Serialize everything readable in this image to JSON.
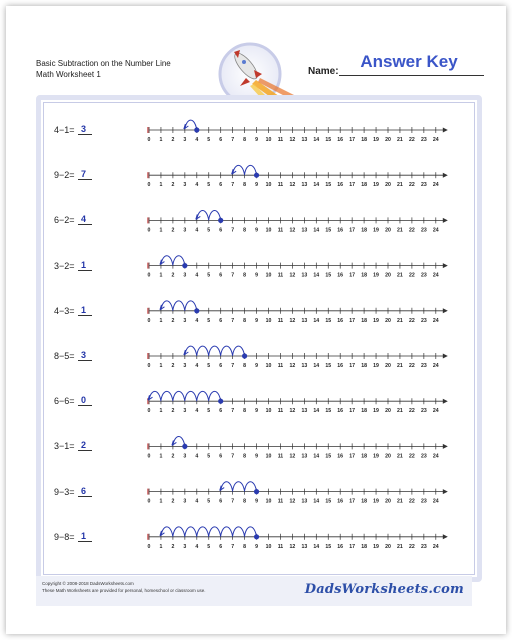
{
  "header": {
    "title_line1": "Basic Subtraction on the Number Line",
    "title_line2": "Math Worksheet 1",
    "name_label": "Name:",
    "answer_key": "Answer Key"
  },
  "problems": [
    {
      "expr": "4−1=",
      "answer": "3",
      "start": 4,
      "jumps": 1
    },
    {
      "expr": "9−2=",
      "answer": "7",
      "start": 9,
      "jumps": 2
    },
    {
      "expr": "6−2=",
      "answer": "4",
      "start": 6,
      "jumps": 2
    },
    {
      "expr": "3−2=",
      "answer": "1",
      "start": 3,
      "jumps": 2
    },
    {
      "expr": "4−3=",
      "answer": "1",
      "start": 4,
      "jumps": 3
    },
    {
      "expr": "8−5=",
      "answer": "3",
      "start": 8,
      "jumps": 5
    },
    {
      "expr": "6−6=",
      "answer": "0",
      "start": 6,
      "jumps": 6
    },
    {
      "expr": "3−1=",
      "answer": "2",
      "start": 3,
      "jumps": 1
    },
    {
      "expr": "9−3=",
      "answer": "6",
      "start": 9,
      "jumps": 3
    },
    {
      "expr": "9−8=",
      "answer": "1",
      "start": 9,
      "jumps": 8
    }
  ],
  "number_line": {
    "min": 0,
    "max": 24,
    "tick_labels": [
      "0",
      "1",
      "2",
      "3",
      "4",
      "5",
      "6",
      "7",
      "8",
      "9",
      "10",
      "11",
      "12",
      "13",
      "14",
      "15",
      "16",
      "17",
      "18",
      "19",
      "20",
      "21",
      "22",
      "23",
      "24"
    ],
    "line_color": "#333333",
    "jump_color": "#2a3bb0"
  },
  "footer": {
    "copyright_line1": "Copyright © 2008-2018 DadsWorksheets.com",
    "copyright_line2": "These Math Worksheets are provided for personal, homeschool or classroom use.",
    "logo_text": "DadsWorksheets.com"
  }
}
